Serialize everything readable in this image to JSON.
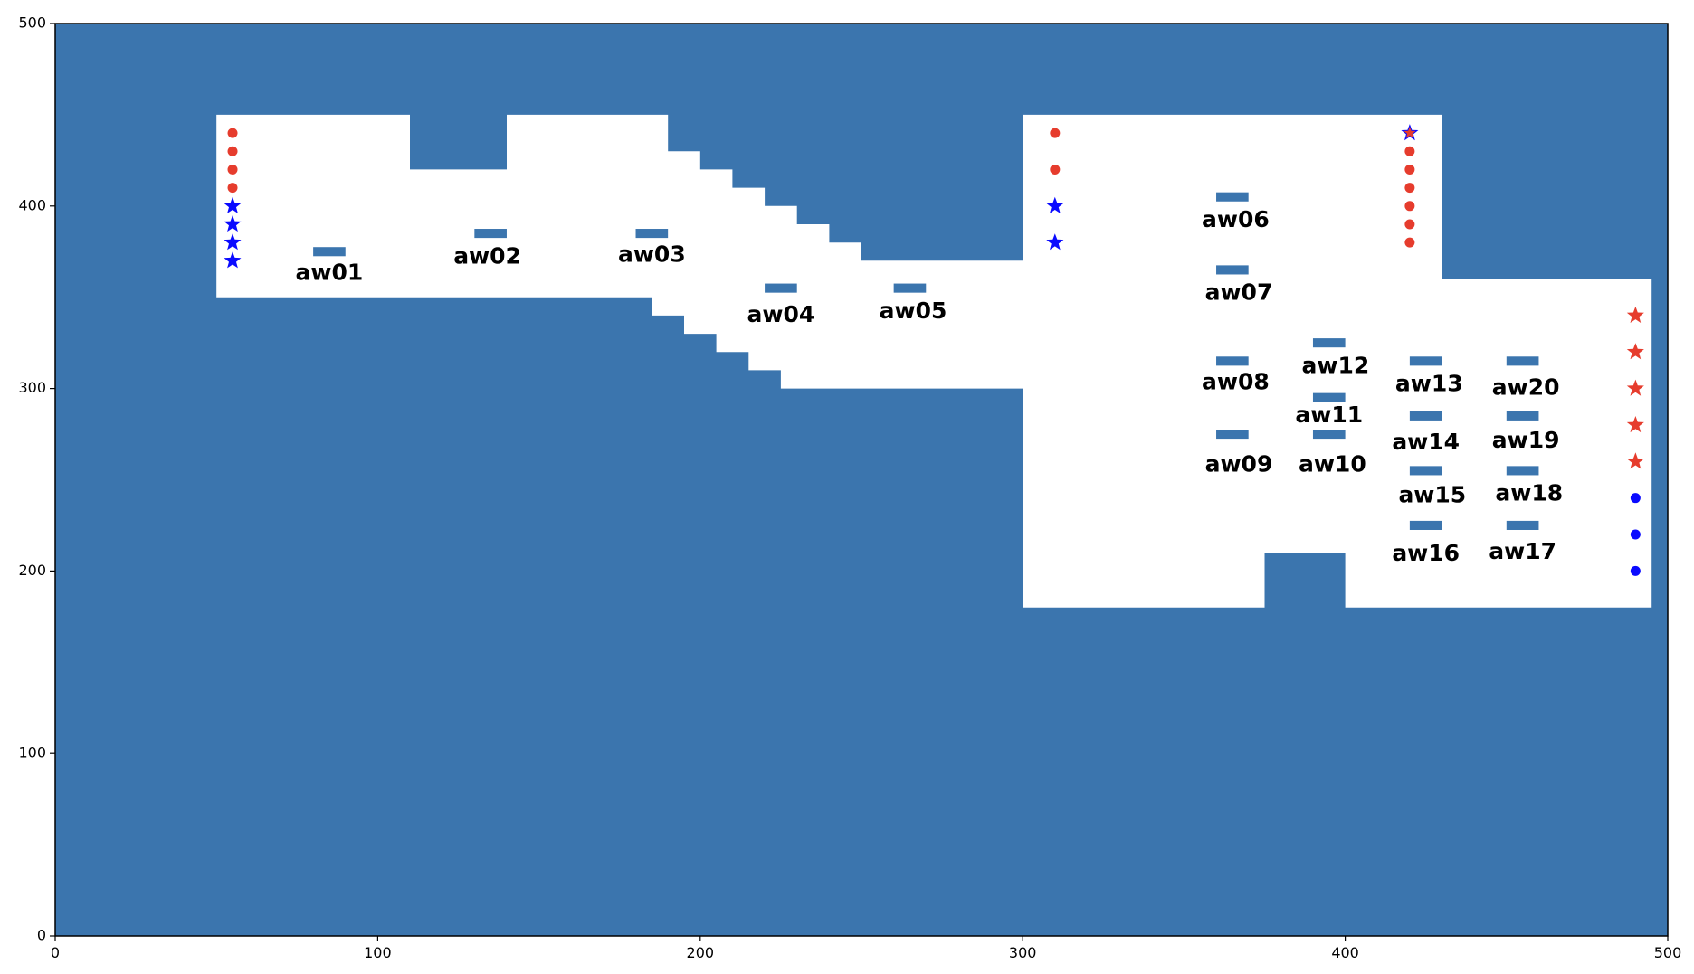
{
  "chart_data": {
    "type": "scatter",
    "xlim": [
      0,
      500
    ],
    "ylim": [
      0,
      500
    ],
    "x_ticks": [
      0,
      100,
      200,
      300,
      400,
      500
    ],
    "y_ticks": [
      0,
      100,
      200,
      300,
      400,
      500
    ],
    "grid": false,
    "colors": {
      "obstacle": "#3b75ae",
      "free": "#ffffff",
      "red_marker": "#e63c2d",
      "blue_marker": "#0a0aff",
      "axis": "#000000"
    },
    "free_space_outline": [
      [
        50,
        350
      ],
      [
        50,
        450
      ],
      [
        110,
        450
      ],
      [
        110,
        420
      ],
      [
        140,
        420
      ],
      [
        140,
        450
      ],
      [
        190,
        450
      ],
      [
        190,
        430
      ],
      [
        200,
        430
      ],
      [
        200,
        420
      ],
      [
        210,
        420
      ],
      [
        210,
        410
      ],
      [
        220,
        410
      ],
      [
        220,
        400
      ],
      [
        230,
        400
      ],
      [
        230,
        390
      ],
      [
        240,
        390
      ],
      [
        240,
        380
      ],
      [
        250,
        380
      ],
      [
        250,
        370
      ],
      [
        300,
        370
      ],
      [
        300,
        450
      ],
      [
        430,
        450
      ],
      [
        430,
        360
      ],
      [
        495,
        360
      ],
      [
        495,
        180
      ],
      [
        400,
        180
      ],
      [
        400,
        210
      ],
      [
        375,
        210
      ],
      [
        375,
        180
      ],
      [
        300,
        180
      ],
      [
        300,
        300
      ],
      [
        225,
        300
      ],
      [
        225,
        310
      ],
      [
        215,
        310
      ],
      [
        215,
        320
      ],
      [
        205,
        320
      ],
      [
        205,
        330
      ],
      [
        195,
        330
      ],
      [
        195,
        340
      ],
      [
        185,
        340
      ],
      [
        185,
        350
      ]
    ],
    "workstations": [
      {
        "label": "aw01",
        "x": 85,
        "y": 375,
        "label_x": 85,
        "label_y": 363
      },
      {
        "label": "aw02",
        "x": 135,
        "y": 385,
        "label_x": 134,
        "label_y": 372
      },
      {
        "label": "aw03",
        "x": 185,
        "y": 385,
        "label_x": 185,
        "label_y": 373
      },
      {
        "label": "aw04",
        "x": 225,
        "y": 355,
        "label_x": 225,
        "label_y": 340
      },
      {
        "label": "aw05",
        "x": 265,
        "y": 355,
        "label_x": 266,
        "label_y": 342
      },
      {
        "label": "aw06",
        "x": 365,
        "y": 405,
        "label_x": 366,
        "label_y": 392
      },
      {
        "label": "aw07",
        "x": 365,
        "y": 365,
        "label_x": 367,
        "label_y": 352
      },
      {
        "label": "aw08",
        "x": 365,
        "y": 315,
        "label_x": 366,
        "label_y": 303
      },
      {
        "label": "aw09",
        "x": 365,
        "y": 275,
        "label_x": 367,
        "label_y": 258
      },
      {
        "label": "aw10",
        "x": 395,
        "y": 275,
        "label_x": 396,
        "label_y": 258
      },
      {
        "label": "aw11",
        "x": 395,
        "y": 295,
        "label_x": 395,
        "label_y": 285
      },
      {
        "label": "aw12",
        "x": 395,
        "y": 325,
        "label_x": 397,
        "label_y": 312
      },
      {
        "label": "aw13",
        "x": 425,
        "y": 315,
        "label_x": 426,
        "label_y": 302
      },
      {
        "label": "aw14",
        "x": 425,
        "y": 285,
        "label_x": 425,
        "label_y": 270
      },
      {
        "label": "aw15",
        "x": 425,
        "y": 255,
        "label_x": 427,
        "label_y": 241
      },
      {
        "label": "aw16",
        "x": 425,
        "y": 225,
        "label_x": 425,
        "label_y": 209
      },
      {
        "label": "aw17",
        "x": 455,
        "y": 225,
        "label_x": 455,
        "label_y": 210
      },
      {
        "label": "aw18",
        "x": 455,
        "y": 255,
        "label_x": 457,
        "label_y": 242
      },
      {
        "label": "aw19",
        "x": 455,
        "y": 285,
        "label_x": 456,
        "label_y": 271
      },
      {
        "label": "aw20",
        "x": 455,
        "y": 315,
        "label_x": 456,
        "label_y": 300
      }
    ],
    "red_dots": [
      [
        55,
        440
      ],
      [
        55,
        430
      ],
      [
        55,
        420
      ],
      [
        55,
        410
      ],
      [
        310,
        440
      ],
      [
        310,
        420
      ],
      [
        420,
        430
      ],
      [
        420,
        420
      ],
      [
        420,
        410
      ],
      [
        420,
        400
      ],
      [
        420,
        390
      ],
      [
        420,
        380
      ]
    ],
    "blue_stars": [
      [
        55,
        400
      ],
      [
        55,
        390
      ],
      [
        55,
        380
      ],
      [
        55,
        370
      ],
      [
        310,
        400
      ],
      [
        310,
        380
      ],
      [
        420,
        440
      ]
    ],
    "red_stars": [
      [
        420,
        440
      ],
      [
        490,
        340
      ],
      [
        490,
        320
      ],
      [
        490,
        300
      ],
      [
        490,
        280
      ],
      [
        490,
        260
      ]
    ],
    "blue_dots": [
      [
        490,
        240
      ],
      [
        490,
        220
      ],
      [
        490,
        200
      ]
    ]
  }
}
